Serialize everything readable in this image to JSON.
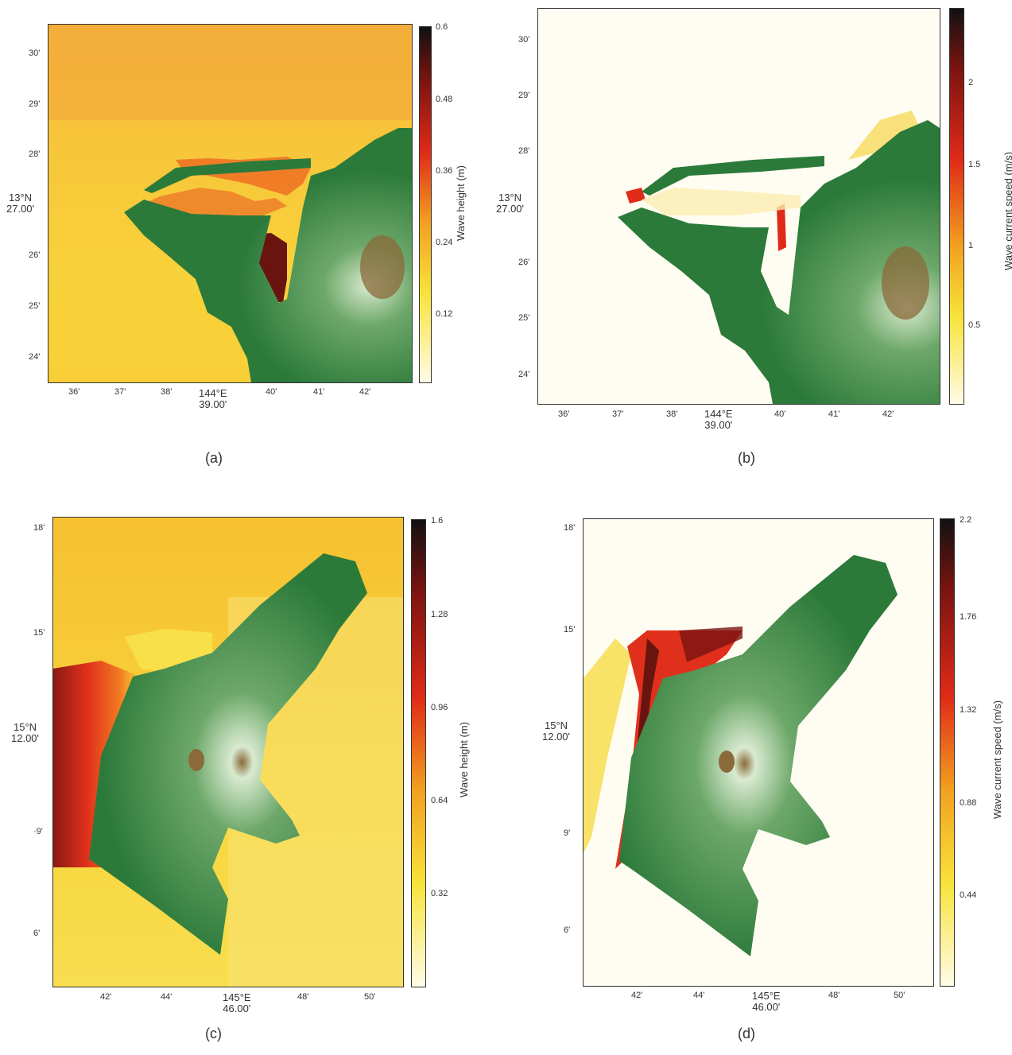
{
  "panels": [
    {
      "id": "a",
      "caption": "(a)",
      "lat_ticks": [
        "30'",
        "29'",
        "28'",
        "25'",
        "24'",
        "26'"
      ],
      "lat_center": {
        "line1": "13°N",
        "line2": "27.00'"
      },
      "lon_ticks": [
        "36'",
        "37'",
        "38'",
        "40'",
        "41'",
        "42'"
      ],
      "lon_center": {
        "line1": "144°E",
        "line2": "39.00'"
      },
      "colorbar": {
        "title": "Wave height (m)",
        "ticks": [
          "0.6",
          "0.48",
          "0.36",
          "0.24",
          "0.12"
        ]
      }
    },
    {
      "id": "b",
      "caption": "(b)",
      "lat_ticks": [
        "30'",
        "29'",
        "28'",
        "26'",
        "25'",
        "24'"
      ],
      "lat_center": {
        "line1": "13°N",
        "line2": "27.00'"
      },
      "lon_ticks": [
        "36'",
        "37'",
        "38'",
        "40'",
        "41'",
        "42'"
      ],
      "lon_center": {
        "line1": "144°E",
        "line2": "39.00'"
      },
      "colorbar": {
        "title": "Wave current speed (m/s)",
        "ticks": [
          "2",
          "1.5",
          "1",
          "0.5"
        ]
      }
    },
    {
      "id": "c",
      "caption": "(c)",
      "lat_ticks": [
        "18'",
        "15'",
        "·9'",
        "6'"
      ],
      "lat_center": {
        "line1": "15°N",
        "line2": "12.00'"
      },
      "lon_ticks": [
        "42'",
        "44'",
        "48'",
        "50'"
      ],
      "lon_center": {
        "line1": "145°E",
        "line2": "46.00'"
      },
      "colorbar": {
        "title": "Wave height (m)",
        "ticks": [
          "1.6",
          "1.28",
          "0.96",
          "0.64",
          "0.32"
        ]
      }
    },
    {
      "id": "d",
      "caption": "(d)",
      "lat_ticks": [
        "18'",
        "15'",
        "9'",
        "6'"
      ],
      "lat_center": {
        "line1": "15°N",
        "line2": "12.00'"
      },
      "lon_ticks": [
        "42'",
        "44'",
        "48'",
        "50'"
      ],
      "lon_center": {
        "line1": "145°E",
        "line2": "46.00'"
      },
      "colorbar": {
        "title": "Wave current speed (m/s)",
        "ticks": [
          "2.2",
          "1.76",
          "1.32",
          "0.88",
          "0.44"
        ]
      }
    }
  ],
  "colors": {
    "land_dark": "#2c7a3a",
    "land_light": "#d9ead0",
    "peak": "#8a6a3a",
    "colormap": [
      "#fffbe8",
      "#f8e33a",
      "#f2a020",
      "#e02a18",
      "#7a1410",
      "#111111"
    ]
  }
}
